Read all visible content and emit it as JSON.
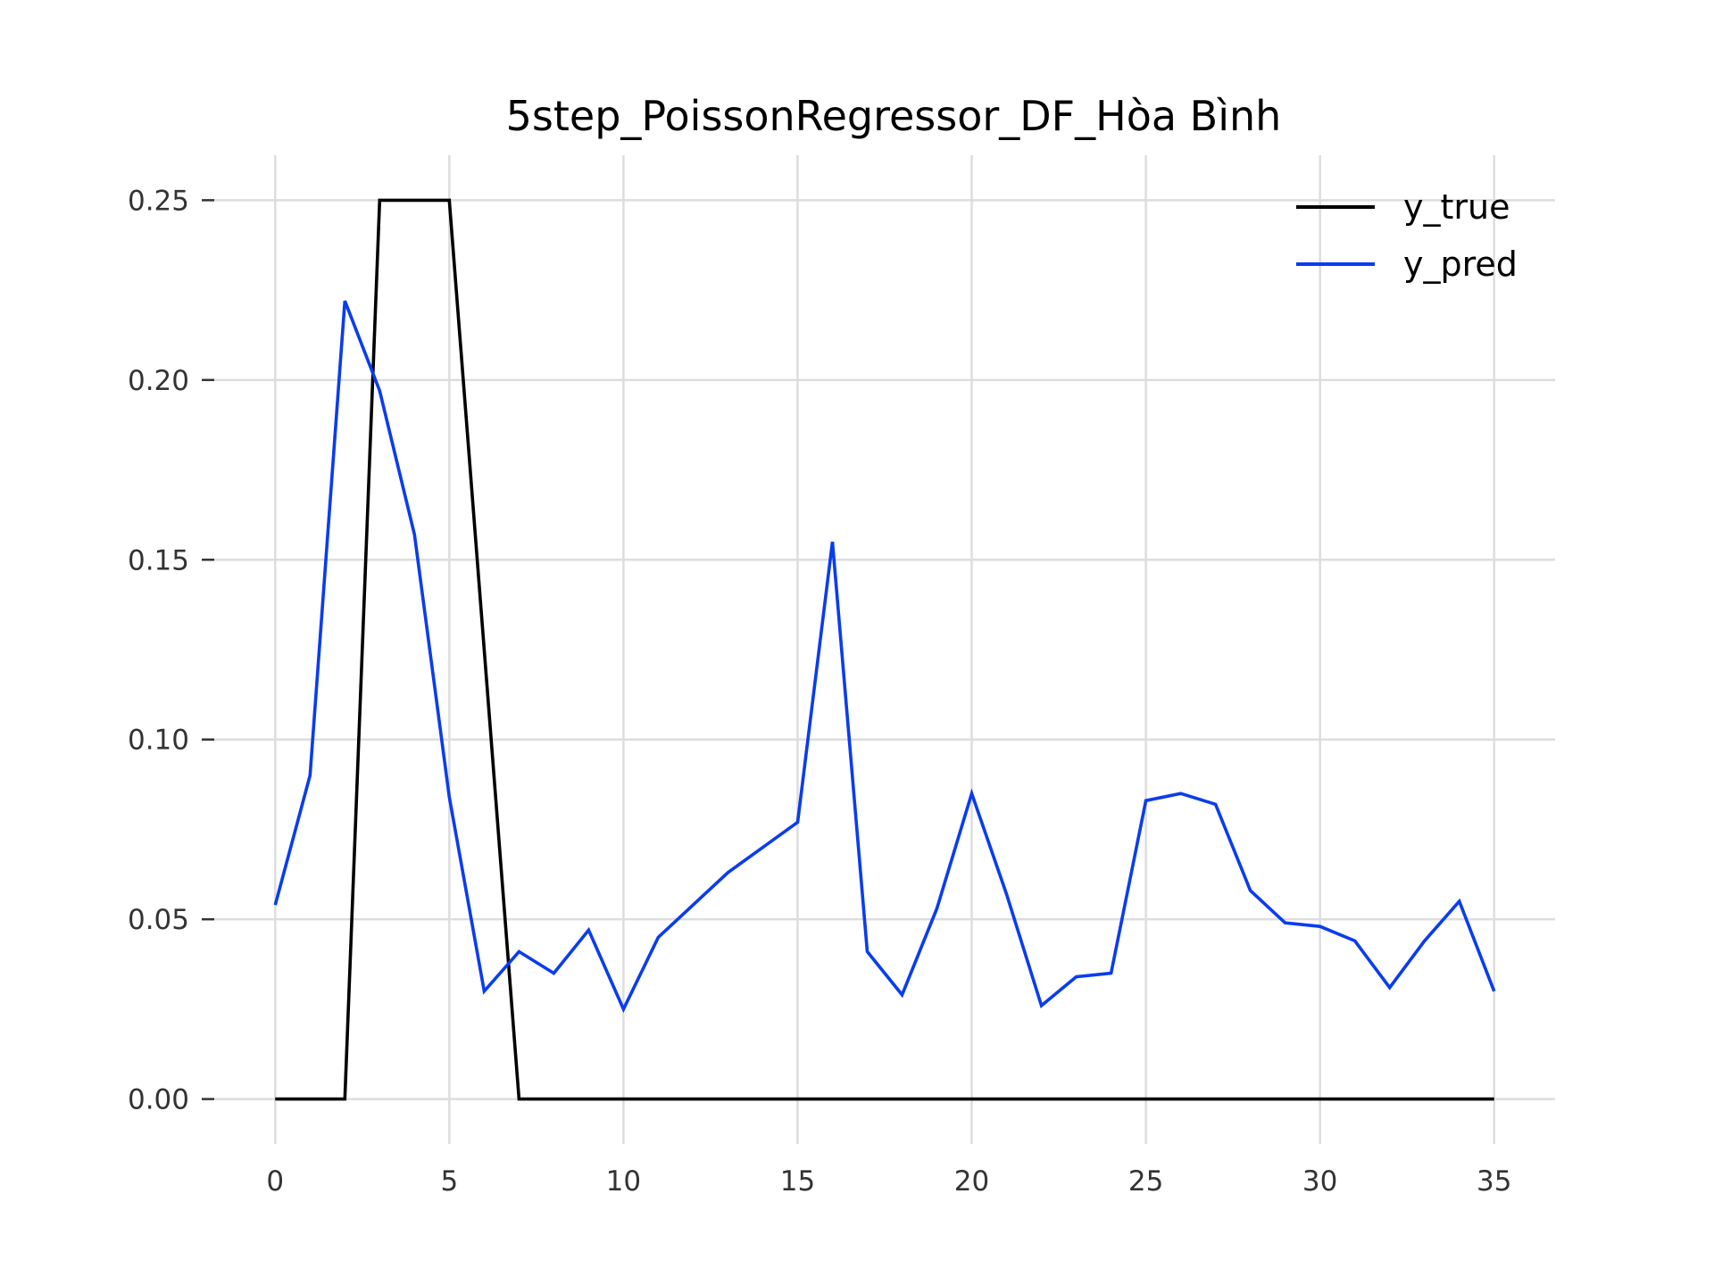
{
  "chart_data": {
    "type": "line",
    "title": "5step_PoissonRegressor_DF_Hòa Bình",
    "xlabel": "",
    "ylabel": "",
    "xlim": [
      -1.75,
      36.75
    ],
    "ylim": [
      -0.0125,
      0.2625
    ],
    "xticks": [
      0,
      5,
      10,
      15,
      20,
      25,
      30,
      35
    ],
    "xtick_labels": [
      "0",
      "5",
      "10",
      "15",
      "20",
      "25",
      "30",
      "35"
    ],
    "yticks": [
      0.0,
      0.05,
      0.1,
      0.15,
      0.2,
      0.25
    ],
    "ytick_labels": [
      "0.00",
      "0.05",
      "0.10",
      "0.15",
      "0.20",
      "0.25"
    ],
    "grid": true,
    "legend_position": "top-right",
    "x": [
      0,
      1,
      2,
      3,
      4,
      5,
      6,
      7,
      8,
      9,
      10,
      11,
      12,
      13,
      14,
      15,
      16,
      17,
      18,
      19,
      20,
      21,
      22,
      23,
      24,
      25,
      26,
      27,
      28,
      29,
      30,
      31,
      32,
      33,
      34,
      35
    ],
    "series": [
      {
        "name": "y_true",
        "color": "#000000",
        "values": [
          0,
          0,
          0,
          0.25,
          0.25,
          0.25,
          0.125,
          0,
          0,
          0,
          0,
          0,
          0,
          0,
          0,
          0,
          0,
          0,
          0,
          0,
          0,
          0,
          0,
          0,
          0,
          0,
          0,
          0,
          0,
          0,
          0,
          0,
          0,
          0,
          0,
          0
        ]
      },
      {
        "name": "y_pred",
        "color": "#0a3cf0",
        "values": [
          0.054,
          0.09,
          0.222,
          0.197,
          0.157,
          0.084,
          0.03,
          0.041,
          0.035,
          0.047,
          0.025,
          0.045,
          0.054,
          0.063,
          0.07,
          0.077,
          0.155,
          0.041,
          0.029,
          0.053,
          0.085,
          0.057,
          0.026,
          0.034,
          0.035,
          0.083,
          0.085,
          0.082,
          0.058,
          0.049,
          0.048,
          0.044,
          0.031,
          0.044,
          0.055,
          0.03
        ]
      }
    ]
  }
}
